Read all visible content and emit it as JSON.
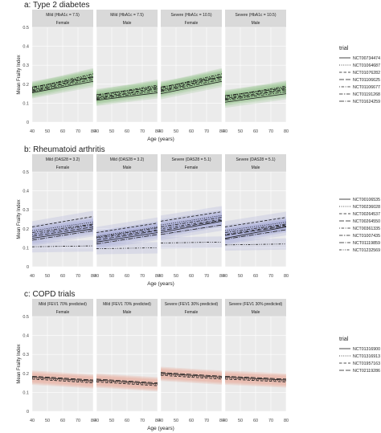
{
  "chart_data": [
    {
      "type": "line",
      "title": "a: Type 2 diabetes",
      "xlabel": "Age (years)",
      "ylabel": "Mean Frailty Index",
      "xlim": [
        40,
        80
      ],
      "ylim": [
        0,
        0.5
      ],
      "x_ticks": [
        40,
        50,
        60,
        70,
        80
      ],
      "y_ticks": [
        0,
        0.1,
        0.2,
        0.3,
        0.4,
        0.5
      ],
      "band_color": "#8fbf82",
      "legend_title": "trial",
      "legend_placement": "right",
      "facets": [
        {
          "top": "Mild (HbA1c = 7.5)",
          "sub": "Female"
        },
        {
          "top": "Mild (HbA1c = 7.5)",
          "sub": "Male"
        },
        {
          "top": "Severe (HbA1c = 10.5)",
          "sub": "Female"
        },
        {
          "top": "Severe (HbA1c = 10.5)",
          "sub": "Male"
        }
      ],
      "series": [
        {
          "name": "NCT00734474",
          "dash": "solid",
          "values": [
            [
              0.155,
              0.215
            ],
            [
              0.115,
              0.155
            ],
            [
              0.15,
              0.215
            ],
            [
              0.105,
              0.15
            ]
          ]
        },
        {
          "name": "NCT01064687",
          "dash": "dotted",
          "values": [
            [
              0.175,
              0.25
            ],
            [
              0.135,
              0.19
            ],
            [
              0.175,
              0.25
            ],
            [
              0.13,
              0.185
            ]
          ]
        },
        {
          "name": "NCT01076282",
          "dash": "dashed",
          "values": [
            [
              0.17,
              0.24
            ],
            [
              0.13,
              0.18
            ],
            [
              0.17,
              0.24
            ],
            [
              0.125,
              0.175
            ]
          ]
        },
        {
          "name": "NCT01106625",
          "dash": "longdash",
          "values": [
            [
              0.165,
              0.235
            ],
            [
              0.125,
              0.175
            ],
            [
              0.165,
              0.235
            ],
            [
              0.12,
              0.17
            ]
          ]
        },
        {
          "name": "NCT01106677",
          "dash": "dotdash",
          "values": [
            [
              0.18,
              0.255
            ],
            [
              0.14,
              0.195
            ],
            [
              0.18,
              0.255
            ],
            [
              0.135,
              0.19
            ]
          ]
        },
        {
          "name": "NCT01191268",
          "dash": "twodash",
          "values": [
            [
              0.16,
              0.225
            ],
            [
              0.12,
              0.165
            ],
            [
              0.16,
              0.225
            ],
            [
              0.115,
              0.16
            ]
          ]
        },
        {
          "name": "NCT01624259",
          "dash": "longdot",
          "values": [
            [
              0.185,
              0.24
            ],
            [
              0.145,
              0.185
            ],
            [
              0.185,
              0.24
            ],
            [
              0.14,
              0.18
            ]
          ]
        }
      ]
    },
    {
      "type": "line",
      "title": "b: Rheumatoid arthritis",
      "xlabel": "Age (years)",
      "ylabel": "Mean Frailty Index",
      "xlim": [
        40,
        80
      ],
      "ylim": [
        0,
        0.5
      ],
      "x_ticks": [
        40,
        50,
        60,
        70,
        80
      ],
      "y_ticks": [
        0,
        0.1,
        0.2,
        0.3,
        0.4,
        0.5
      ],
      "band_color": "#9d9fd8",
      "legend_title": "",
      "legend_placement": "right",
      "facets": [
        {
          "top": "Mild (DAS28 = 3.2)",
          "sub": "Female"
        },
        {
          "top": "Mild (DAS28 = 3.2)",
          "sub": "Male"
        },
        {
          "top": "Severe (DAS28 = 5.1)",
          "sub": "Female"
        },
        {
          "top": "Severe (DAS28 = 5.1)",
          "sub": "Male"
        }
      ],
      "series": [
        {
          "name": "NCT00106535",
          "dash": "solid",
          "values": [
            [
              0.15,
              0.2
            ],
            [
              0.13,
              0.18
            ],
            [
              0.18,
              0.24
            ],
            [
              0.15,
              0.21
            ]
          ]
        },
        {
          "name": "NCT00236028",
          "dash": "dotted",
          "values": [
            [
              0.19,
              0.235
            ],
            [
              0.16,
              0.21
            ],
            [
              0.22,
              0.27
            ],
            [
              0.19,
              0.235
            ]
          ]
        },
        {
          "name": "NCT00264537",
          "dash": "dashed",
          "values": [
            [
              0.21,
              0.265
            ],
            [
              0.18,
              0.23
            ],
            [
              0.24,
              0.29
            ],
            [
              0.21,
              0.26
            ]
          ]
        },
        {
          "name": "NCT00264550",
          "dash": "longdash",
          "values": [
            [
              0.16,
              0.21
            ],
            [
              0.14,
              0.19
            ],
            [
              0.19,
              0.245
            ],
            [
              0.165,
              0.215
            ]
          ]
        },
        {
          "name": "NCT00361335",
          "dash": "dotdash",
          "values": [
            [
              0.17,
              0.22
            ],
            [
              0.15,
              0.195
            ],
            [
              0.2,
              0.25
            ],
            [
              0.17,
              0.22
            ]
          ]
        },
        {
          "name": "NCT01007435",
          "dash": "twodash",
          "values": [
            [
              0.18,
              0.225
            ],
            [
              0.155,
              0.205
            ],
            [
              0.21,
              0.26
            ],
            [
              0.18,
              0.225
            ]
          ]
        },
        {
          "name": "NCT01119859",
          "dash": "longdot",
          "values": [
            [
              0.14,
              0.19
            ],
            [
              0.12,
              0.17
            ],
            [
              0.17,
              0.22
            ],
            [
              0.145,
              0.195
            ]
          ]
        },
        {
          "name": "NCT01232569",
          "dash": "dashdot2",
          "values": [
            [
              0.105,
              0.11
            ],
            [
              0.095,
              0.1
            ],
            [
              0.125,
              0.13
            ],
            [
              0.115,
              0.12
            ]
          ]
        }
      ]
    },
    {
      "type": "line",
      "title": "c: COPD trials",
      "xlabel": "Age (years)",
      "ylabel": "Mean Frailty Index",
      "xlim": [
        40,
        80
      ],
      "ylim": [
        0,
        0.5
      ],
      "x_ticks": [
        40,
        50,
        60,
        70,
        80
      ],
      "y_ticks": [
        0,
        0.1,
        0.2,
        0.3,
        0.4,
        0.5
      ],
      "band_color": "#e9a493",
      "legend_title": "trial",
      "legend_placement": "right",
      "facets": [
        {
          "top": "Mild (FEV1 70% predicted)",
          "sub": "Female"
        },
        {
          "top": "Mild (FEV1 70% predicted)",
          "sub": "Male"
        },
        {
          "top": "Severe (FEV1 30% predicted)",
          "sub": "Female"
        },
        {
          "top": "Severe (FEV1 30% predicted)",
          "sub": "Male"
        }
      ],
      "series": [
        {
          "name": "NCT01316900",
          "dash": "solid",
          "values": [
            [
              0.18,
              0.16
            ],
            [
              0.165,
              0.145
            ],
            [
              0.2,
              0.18
            ],
            [
              0.18,
              0.165
            ]
          ]
        },
        {
          "name": "NCT01316913",
          "dash": "dotted",
          "values": [
            [
              0.175,
              0.155
            ],
            [
              0.16,
              0.14
            ],
            [
              0.195,
              0.175
            ],
            [
              0.175,
              0.16
            ]
          ]
        },
        {
          "name": "NCT01957163",
          "dash": "dashed",
          "values": [
            [
              0.17,
              0.15
            ],
            [
              0.155,
              0.135
            ],
            [
              0.19,
              0.17
            ],
            [
              0.17,
              0.155
            ]
          ]
        },
        {
          "name": "NCT02119286",
          "dash": "longdash",
          "values": [
            [
              0.185,
              0.165
            ],
            [
              0.17,
              0.15
            ],
            [
              0.205,
              0.185
            ],
            [
              0.185,
              0.17
            ]
          ]
        }
      ]
    }
  ]
}
